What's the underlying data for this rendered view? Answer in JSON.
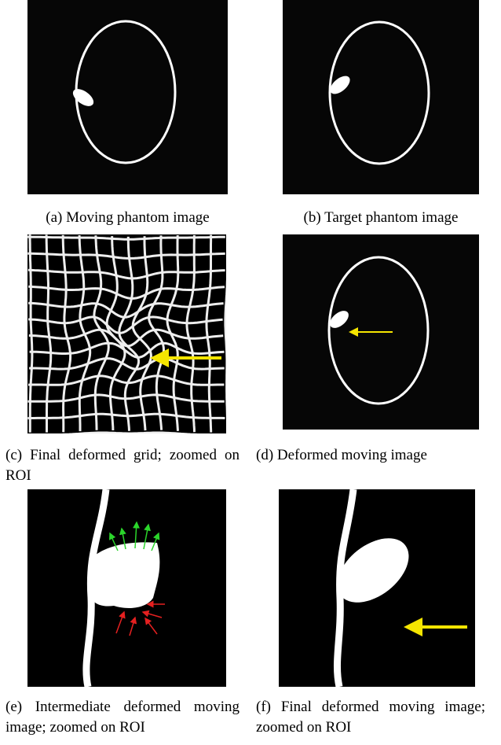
{
  "figures": [
    {
      "caption": "(a) Moving phantom image"
    },
    {
      "caption": "(b) Target phantom image"
    },
    {
      "caption": "(c) Final deformed grid; zoomed on ROI"
    },
    {
      "caption": "(d) Deformed moving image"
    },
    {
      "caption": "(e) Intermediate deformed moving image; zoomed on ROI"
    },
    {
      "caption": "(f) Final deformed moving image; zoomed on ROI"
    }
  ]
}
